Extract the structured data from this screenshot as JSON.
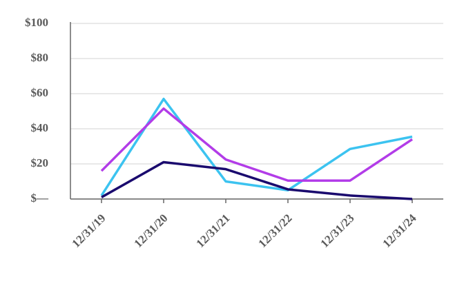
{
  "chart_data": {
    "type": "line",
    "categories": [
      "12/31/19",
      "12/31/20",
      "12/31/21",
      "12/31/22",
      "12/31/23",
      "12/31/24"
    ],
    "series": [
      {
        "color": "#3cc3f0",
        "values": [
          2,
          57,
          10,
          5,
          28.5,
          35.5
        ]
      },
      {
        "color": "#b23ce8",
        "values": [
          16,
          51.5,
          22.5,
          10.5,
          10.5,
          34
        ]
      },
      {
        "color": "#1a0a6e",
        "values": [
          1,
          21,
          17,
          5.5,
          2,
          0
        ]
      }
    ],
    "ylim": [
      0,
      100
    ],
    "yticks": [
      {
        "value": 0,
        "label": "$—"
      },
      {
        "value": 20,
        "label": "$20"
      },
      {
        "value": 40,
        "label": "$40"
      },
      {
        "value": 60,
        "label": "$60"
      },
      {
        "value": 80,
        "label": "$80"
      },
      {
        "value": 100,
        "label": "$100"
      }
    ],
    "grid": true
  }
}
